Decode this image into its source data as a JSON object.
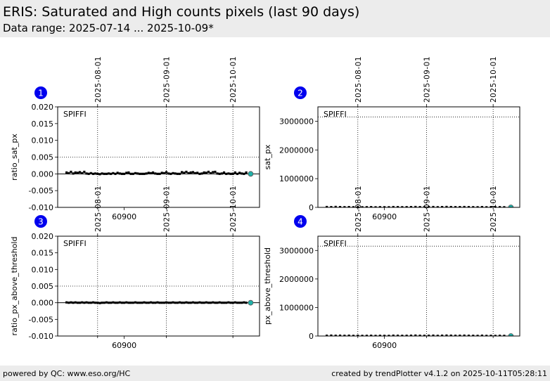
{
  "header": {
    "title": "ERIS: Saturated and High counts pixels (last 90 days)",
    "subtitle": "Data range: 2025-07-14 ... 2025-10-09*"
  },
  "footer": {
    "left": "powered by QC: www.eso.org/HC",
    "right": "created by trendPlotter v4.1.2 on 2025-10-11T05:28:11"
  },
  "colors": {
    "header_bg": "#ececec",
    "badge": "#0000ee",
    "data_points": "#000000",
    "latest_point": "#20b2aa"
  },
  "chart_data": [
    {
      "type": "scatter",
      "badge": "1",
      "label": "SPIFFI",
      "ylabel": "ratio_sat_px",
      "xlim": [
        60870,
        60961
      ],
      "ylim": [
        -0.01,
        0.02
      ],
      "yticks": [
        "0.020",
        "0.015",
        "0.010",
        "0.005",
        "0.000",
        "-0.005",
        "-0.010"
      ],
      "ytick_values": [
        0.02,
        0.015,
        0.01,
        0.005,
        0.0,
        -0.005,
        -0.01
      ],
      "xticks": [
        "60900"
      ],
      "xtick_values": [
        60900
      ],
      "date_ticks": [
        "2025-08-01",
        "2025-09-01",
        "2025-10-01"
      ],
      "date_tick_mjd": [
        60888,
        60919,
        60949
      ],
      "threshold_line": 0.005,
      "zero_line": 0.0,
      "series": [
        {
          "x": [
            60874,
            60875,
            60876,
            60877,
            60878,
            60879,
            60880,
            60881,
            60882,
            60883,
            60884,
            60885,
            60886,
            60887,
            60888,
            60889,
            60890,
            60891,
            60892,
            60893,
            60894,
            60895,
            60896,
            60897,
            60898,
            60899,
            60900,
            60901,
            60902,
            60903,
            60904,
            60905,
            60906,
            60907,
            60908,
            60909,
            60910,
            60911,
            60912,
            60913,
            60914,
            60915,
            60916,
            60917,
            60918,
            60919,
            60920,
            60921,
            60922,
            60923,
            60924,
            60925,
            60926,
            60927,
            60928,
            60929,
            60930,
            60931,
            60932,
            60933,
            60934,
            60935,
            60936,
            60937,
            60938,
            60939,
            60940,
            60941,
            60942,
            60943,
            60944,
            60945,
            60946,
            60947,
            60948,
            60949,
            60950,
            60951,
            60952,
            60953,
            60954,
            60955
          ],
          "y": [
            0.0004,
            0.0002,
            0.0006,
            0.0001,
            0.0004,
            0.0003,
            0.0005,
            0.0002,
            0.0006,
            0.0001,
            0.0,
            0.0002,
            0.0,
            0.0001,
            0.0,
            -0.0001,
            0.0001,
            0.0,
            0.0,
            0.0001,
            0.0,
            0.0002,
            0.0,
            0.0003,
            0.0001,
            0.0,
            0.0,
            0.0003,
            0.0004,
            0.0,
            0.0,
            0.0002,
            0.0001,
            0.0,
            0.0,
            0.0,
            0.0001,
            0.0003,
            0.0002,
            0.0004,
            0.0001,
            0.0,
            0.0,
            0.0003,
            0.0002,
            0.0005,
            0.0001,
            0.0,
            0.0002,
            0.0001,
            0.0,
            0.0,
            0.0005,
            0.0003,
            0.0006,
            0.0002,
            0.0004,
            0.0005,
            0.0002,
            0.0003,
            0.0,
            0.0001,
            0.0004,
            0.0003,
            0.0006,
            0.0002,
            0.0005,
            0.0006,
            0.0001,
            0.0,
            0.0001,
            0.0004,
            0.0,
            0.0001,
            0.0,
            0.0,
            0.0004,
            0.0,
            0.0003,
            0.0001,
            0.0,
            0.0004
          ]
        }
      ],
      "latest": {
        "x": 60957,
        "y": 0.0
      }
    },
    {
      "type": "scatter",
      "badge": "2",
      "label": "SPIFFI",
      "ylabel": "sat_px",
      "xlim": [
        60870,
        60961
      ],
      "ylim": [
        0,
        3500000
      ],
      "yticks": [
        "3000000",
        "2000000",
        "1000000",
        "0"
      ],
      "ytick_values": [
        3000000,
        2000000,
        1000000,
        0
      ],
      "xticks": [
        "60900"
      ],
      "xtick_values": [
        60900
      ],
      "date_ticks": [
        "2025-08-01",
        "2025-09-01",
        "2025-10-01"
      ],
      "date_tick_mjd": [
        60888,
        60919,
        60949
      ],
      "threshold_line": 3150000,
      "series": [
        {
          "x": [
            60874,
            60876,
            60878,
            60880,
            60882,
            60884,
            60886,
            60888,
            60890,
            60892,
            60894,
            60896,
            60898,
            60900,
            60902,
            60904,
            60906,
            60908,
            60910,
            60912,
            60914,
            60916,
            60918,
            60920,
            60922,
            60924,
            60926,
            60928,
            60930,
            60932,
            60934,
            60936,
            60938,
            60940,
            60942,
            60944,
            60946,
            60948,
            60950,
            60952,
            60954
          ],
          "y": [
            12000,
            8000,
            15000,
            10000,
            6000,
            9000,
            4000,
            7000,
            3000,
            5000,
            8000,
            2000,
            6000,
            4000,
            3000,
            11000,
            9000,
            5000,
            7000,
            10000,
            13000,
            8000,
            6000,
            9000,
            12000,
            5000,
            10000,
            14000,
            11000,
            7000,
            9000,
            12000,
            8000,
            6000,
            4000,
            10000,
            3000,
            5000,
            2000,
            6000,
            4000
          ]
        }
      ],
      "latest": {
        "x": 60957,
        "y": 0
      }
    },
    {
      "type": "scatter",
      "badge": "3",
      "label": "SPIFFI",
      "ylabel": "ratio_px_above_threshold",
      "xlim": [
        60870,
        60961
      ],
      "ylim": [
        -0.01,
        0.02
      ],
      "yticks": [
        "0.020",
        "0.015",
        "0.010",
        "0.005",
        "0.000",
        "-0.005",
        "-0.010"
      ],
      "ytick_values": [
        0.02,
        0.015,
        0.01,
        0.005,
        0.0,
        -0.005,
        -0.01
      ],
      "xticks": [
        "60900"
      ],
      "xtick_values": [
        60900
      ],
      "date_ticks": [
        "2025-08-01",
        "2025-09-01",
        "2025-10-01"
      ],
      "date_tick_mjd": [
        60888,
        60919,
        60949
      ],
      "threshold_line": 0.005,
      "zero_line": 0.0,
      "series": [
        {
          "x": [
            60874,
            60875,
            60876,
            60877,
            60878,
            60879,
            60880,
            60881,
            60882,
            60883,
            60884,
            60885,
            60886,
            60887,
            60888,
            60889,
            60890,
            60891,
            60892,
            60893,
            60894,
            60895,
            60896,
            60897,
            60898,
            60899,
            60900,
            60901,
            60902,
            60903,
            60904,
            60905,
            60906,
            60907,
            60908,
            60909,
            60910,
            60911,
            60912,
            60913,
            60914,
            60915,
            60916,
            60917,
            60918,
            60919,
            60920,
            60921,
            60922,
            60923,
            60924,
            60925,
            60926,
            60927,
            60928,
            60929,
            60930,
            60931,
            60932,
            60933,
            60934,
            60935,
            60936,
            60937,
            60938,
            60939,
            60940,
            60941,
            60942,
            60943,
            60944,
            60945,
            60946,
            60947,
            60948,
            60949,
            60950,
            60951,
            60952,
            60953,
            60954,
            60955
          ],
          "y": [
            0.0001,
            0.0,
            0.0001,
            0.0,
            0.0001,
            0.0,
            0.0,
            0.0001,
            0.0,
            0.0001,
            0.0,
            0.0,
            0.0001,
            0.0,
            0.0,
            -0.0001,
            0.0,
            0.0,
            0.0001,
            0.0,
            0.0,
            0.0001,
            0.0,
            0.0,
            0.0001,
            0.0,
            0.0,
            0.0001,
            0.0,
            0.0,
            0.0,
            0.0001,
            0.0,
            0.0,
            0.0,
            0.0001,
            0.0,
            0.0,
            0.0001,
            0.0,
            0.0,
            0.0001,
            0.0,
            0.0,
            0.0,
            0.0001,
            0.0,
            0.0,
            0.0001,
            0.0,
            0.0,
            0.0001,
            0.0,
            0.0,
            0.0001,
            0.0,
            0.0,
            0.0001,
            0.0,
            0.0,
            0.0001,
            0.0,
            0.0,
            0.0001,
            0.0,
            0.0,
            0.0001,
            0.0,
            0.0,
            0.0001,
            0.0,
            0.0,
            0.0,
            0.0001,
            0.0,
            0.0,
            0.0001,
            0.0,
            0.0,
            0.0,
            0.0001,
            0.0
          ]
        }
      ],
      "latest": {
        "x": 60957,
        "y": 0.0
      }
    },
    {
      "type": "scatter",
      "badge": "4",
      "label": "SPIFFI",
      "ylabel": "px_above_threshold",
      "xlim": [
        60870,
        60961
      ],
      "ylim": [
        0,
        3500000
      ],
      "yticks": [
        "3000000",
        "2000000",
        "1000000",
        "0"
      ],
      "ytick_values": [
        3000000,
        2000000,
        1000000,
        0
      ],
      "xticks": [
        "60900"
      ],
      "xtick_values": [
        60900
      ],
      "date_ticks": [
        "2025-08-01",
        "2025-09-01",
        "2025-10-01"
      ],
      "date_tick_mjd": [
        60888,
        60919,
        60949
      ],
      "threshold_line": 3150000,
      "series": [
        {
          "x": [
            60874,
            60876,
            60878,
            60880,
            60882,
            60884,
            60886,
            60888,
            60890,
            60892,
            60894,
            60896,
            60898,
            60900,
            60902,
            60904,
            60906,
            60908,
            60910,
            60912,
            60914,
            60916,
            60918,
            60920,
            60922,
            60924,
            60926,
            60928,
            60930,
            60932,
            60934,
            60936,
            60938,
            60940,
            60942,
            60944,
            60946,
            60948,
            60950,
            60952,
            60954
          ],
          "y": [
            10000,
            14000,
            9000,
            12000,
            7000,
            11000,
            5000,
            8000,
            4000,
            6000,
            9000,
            3000,
            7000,
            5000,
            4000,
            12000,
            10000,
            6000,
            8000,
            11000,
            15000,
            9000,
            7000,
            10000,
            13000,
            6000,
            11000,
            15000,
            12000,
            8000,
            10000,
            13000,
            9000,
            7000,
            5000,
            11000,
            4000,
            6000,
            3000,
            7000,
            5000
          ]
        }
      ],
      "latest": {
        "x": 60957,
        "y": 0
      }
    }
  ]
}
